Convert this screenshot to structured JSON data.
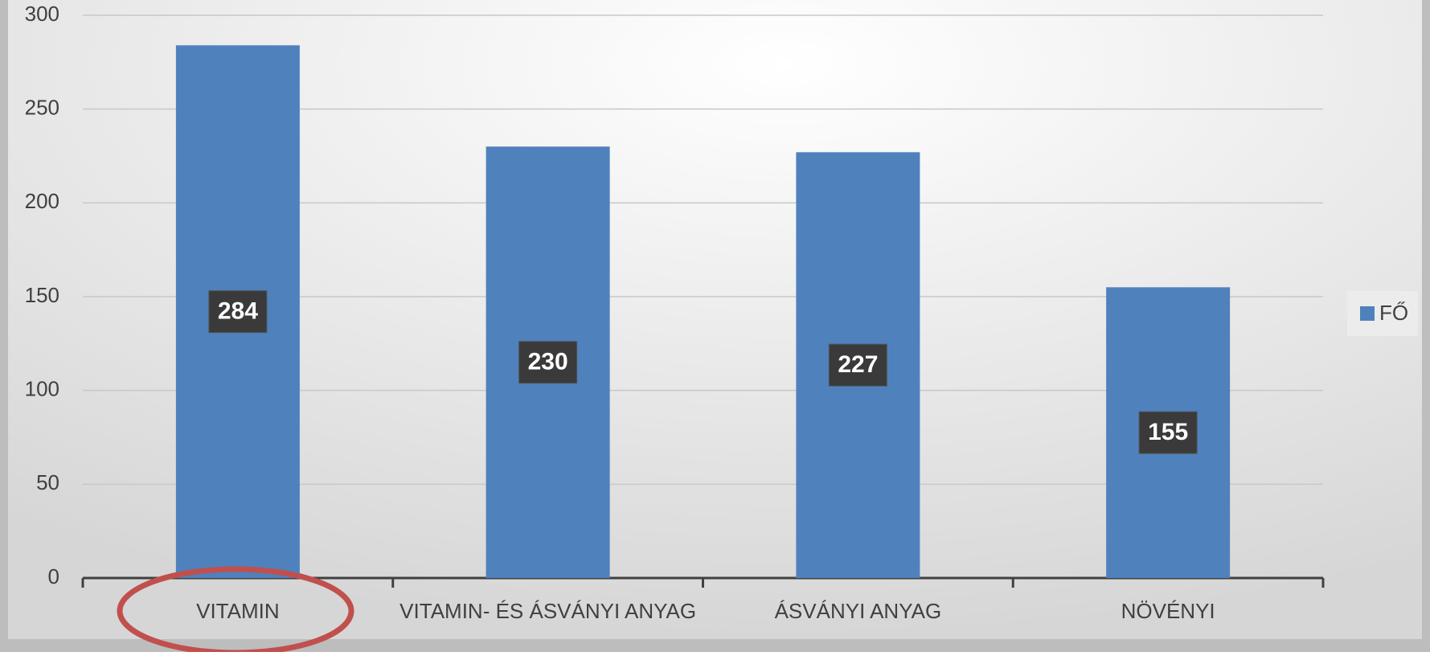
{
  "chart_data": {
    "type": "bar",
    "categories": [
      "VITAMIN",
      "VITAMIN- ÉS ÁSVÁNYI ANYAG",
      "ÁSVÁNYI ANYAG",
      "NÖVÉNYI"
    ],
    "series": [
      {
        "name": "FŐ",
        "color": "#4f81bd",
        "values": [
          284,
          230,
          227,
          155
        ]
      }
    ],
    "ylim": [
      0,
      300
    ],
    "yticks": [
      0,
      50,
      100,
      150,
      200,
      250,
      300
    ],
    "grid": true,
    "legend": "right"
  }
}
